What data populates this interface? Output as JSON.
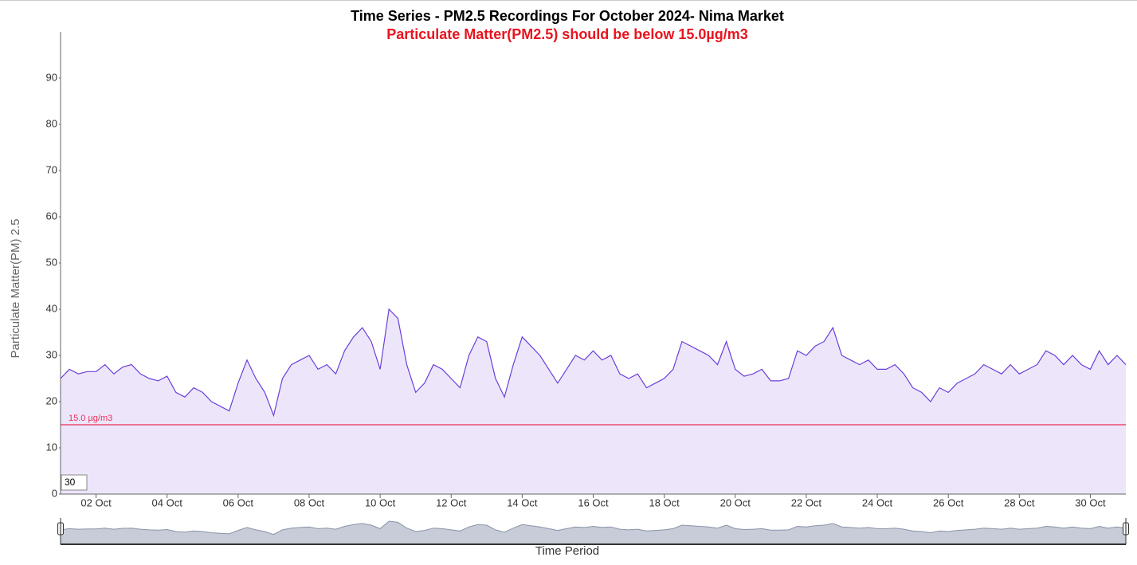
{
  "chart_data": {
    "type": "area",
    "title": "Time Series - PM2.5 Recordings For October 2024- Nima Market",
    "subtitle": "Particulate Matter(PM2.5) should be below 15.0µg/m3",
    "y_label": "Particulate Matter(PM) 2.5",
    "x_label": "Time Period",
    "zoom_input": "30",
    "ylim": [
      0,
      100
    ],
    "yticks": [
      0,
      10,
      20,
      30,
      40,
      50,
      60,
      70,
      80,
      90
    ],
    "color": "#6a3fd8",
    "fill": "#ede6fb",
    "threshold": {
      "value": 15,
      "label": "15.0 µg/m3",
      "color": "#e8305a"
    },
    "categories": [
      null,
      null,
      null,
      null,
      "02 Oct",
      null,
      null,
      null,
      null,
      null,
      null,
      null,
      "04 Oct",
      null,
      null,
      null,
      null,
      null,
      null,
      null,
      "06 Oct",
      null,
      null,
      null,
      null,
      null,
      null,
      null,
      "08 Oct",
      null,
      null,
      null,
      null,
      null,
      null,
      null,
      "10 Oct",
      null,
      null,
      null,
      null,
      null,
      null,
      null,
      "12 Oct",
      null,
      null,
      null,
      null,
      null,
      null,
      null,
      "14 Oct",
      null,
      null,
      null,
      null,
      null,
      null,
      null,
      "16 Oct",
      null,
      null,
      null,
      null,
      null,
      null,
      null,
      "18 Oct",
      null,
      null,
      null,
      null,
      null,
      null,
      null,
      "20 Oct",
      null,
      null,
      null,
      null,
      null,
      null,
      null,
      "22 Oct",
      null,
      null,
      null,
      null,
      null,
      null,
      null,
      "24 Oct",
      null,
      null,
      null,
      null,
      null,
      null,
      null,
      "26 Oct",
      null,
      null,
      null,
      null,
      null,
      null,
      null,
      "28 Oct",
      null,
      null,
      null,
      null,
      null,
      null,
      null,
      "30 Oct",
      null,
      null,
      null,
      null
    ],
    "values": [
      25,
      27,
      26,
      26.5,
      26.5,
      28,
      26,
      27.5,
      28,
      26,
      25,
      24.5,
      25.5,
      22,
      21,
      23,
      22,
      20,
      19,
      18,
      24,
      29,
      25,
      22,
      17,
      25,
      28,
      29,
      30,
      27,
      28,
      26,
      31,
      34,
      36,
      33,
      27,
      40,
      38,
      28,
      22,
      24,
      28,
      27,
      25,
      23,
      30,
      34,
      33,
      25,
      21,
      28,
      34,
      32,
      30,
      27,
      24,
      27,
      30,
      29,
      31,
      29,
      30,
      26,
      25,
      26,
      23,
      24,
      25,
      27,
      33,
      32,
      31,
      30,
      28,
      33,
      27,
      25.5,
      26,
      27,
      24.5,
      24.5,
      25,
      31,
      30,
      32,
      33,
      36,
      30,
      29,
      28,
      29,
      27,
      27,
      28,
      26,
      23,
      22,
      20,
      23,
      22,
      24,
      25,
      26,
      28,
      27,
      26,
      28,
      26,
      27,
      28,
      31,
      30,
      28,
      30,
      28,
      27,
      31,
      28,
      30,
      28
    ]
  }
}
